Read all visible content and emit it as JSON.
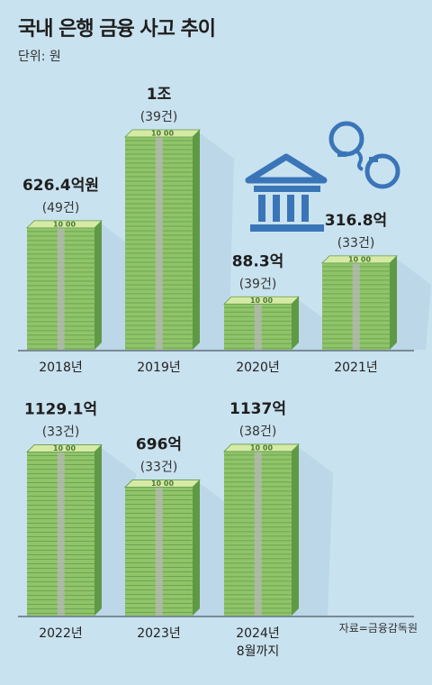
{
  "title": "국내 은행 금융 사고 추이",
  "unit_label": "단위: 원",
  "source": "자료=금융감독원",
  "colors": {
    "background": "#c9e2ef",
    "money_face": "#8fc469",
    "money_side": "#5e9a45",
    "money_top": "#d6eaa6",
    "band": "#b8b8b8",
    "icon": "#3a75b8",
    "shadow": "#b3d1e3"
  },
  "icons": [
    "bank-building-icon",
    "handcuffs-icon"
  ],
  "chart_data": {
    "type": "bar",
    "title": "국내 은행 금융 사고 추이",
    "unit": "원",
    "categories": [
      "2018년",
      "2019년",
      "2020년",
      "2021년",
      "2022년",
      "2023년",
      "2024년 8월까지"
    ],
    "category_lines": [
      [
        "2018년"
      ],
      [
        "2019년"
      ],
      [
        "2020년"
      ],
      [
        "2021년"
      ],
      [
        "2022년"
      ],
      [
        "2023년"
      ],
      [
        "2024년",
        "8월까지"
      ]
    ],
    "values_eok": [
      626.4,
      10000,
      88.3,
      316.8,
      1129.1,
      696,
      1137
    ],
    "value_labels": [
      "626.4억원",
      "1조",
      "88.3억",
      "316.8억",
      "1129.1억",
      "696억",
      "1137억"
    ],
    "case_counts": [
      49,
      39,
      39,
      33,
      33,
      33,
      38
    ],
    "count_labels": [
      "(49건)",
      "(39건)",
      "(39건)",
      "(33건)",
      "(33건)",
      "(33건)",
      "(38건)"
    ],
    "note": "bar heights are pictorial money stacks, not to scale"
  }
}
